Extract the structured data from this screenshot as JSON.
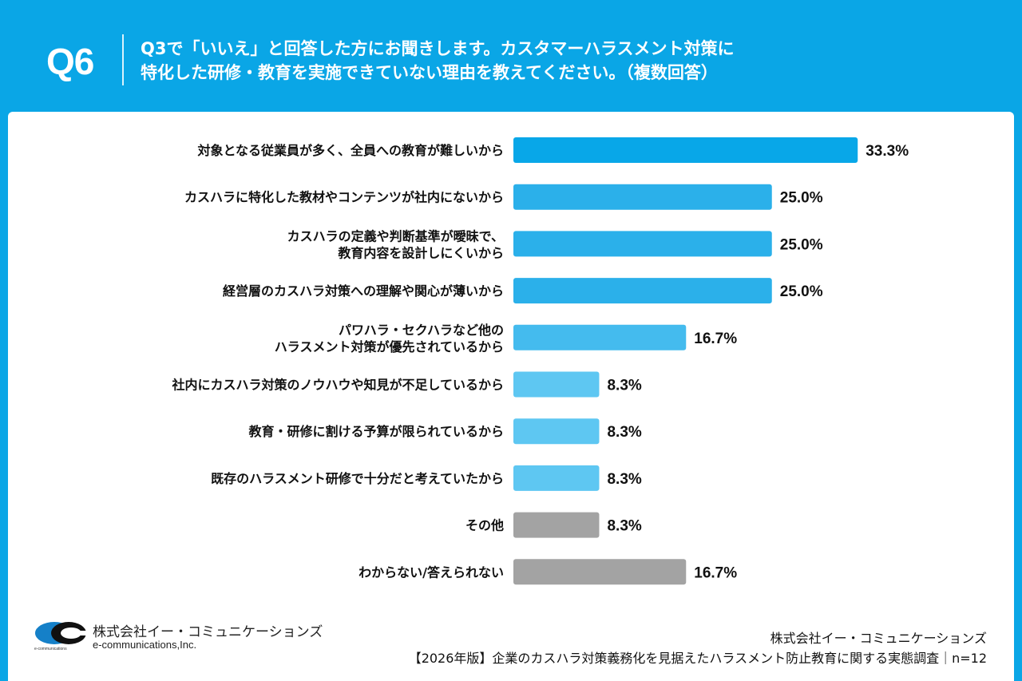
{
  "header": {
    "question_no": "Q6",
    "question_line1": "Q3で「いいえ」と回答した方にお聞きします。カスタマーハラスメント対策に",
    "question_line2": "特化した研修・教育を実施できていない理由を教えてください。（複数回答）"
  },
  "chart_data": {
    "type": "bar",
    "orientation": "horizontal",
    "categories": [
      [
        "対象となる従業員が多く、全員への教育が難しいから"
      ],
      [
        "カスハラに特化した教材やコンテンツが社内にないから"
      ],
      [
        "カスハラの定義や判断基準が曖昧で、",
        "教育内容を設計しにくいから"
      ],
      [
        "経営層のカスハラ対策への理解や関心が薄いから"
      ],
      [
        "パワハラ・セクハラなど他の",
        "ハラスメント対策が優先されているから"
      ],
      [
        "社内にカスハラ対策のノウハウや知見が不足しているから"
      ],
      [
        "教育・研修に割ける予算が限られているから"
      ],
      [
        "既存のハラスメント研修で十分だと考えていたから"
      ],
      [
        "その他"
      ],
      [
        "わからない/答えられない"
      ]
    ],
    "values": [
      33.3,
      25.0,
      25.0,
      25.0,
      16.7,
      8.3,
      8.3,
      8.3,
      8.3,
      16.7
    ],
    "value_labels": [
      "33.3%",
      "25.0%",
      "25.0%",
      "25.0%",
      "16.7%",
      "8.3%",
      "8.3%",
      "8.3%",
      "8.3%",
      "16.7%"
    ],
    "colors": [
      "#08a7e8",
      "#2bb0ea",
      "#2bb0ea",
      "#2bb0ea",
      "#44bbee",
      "#5ec7f2",
      "#5ec7f2",
      "#5ec7f2",
      "#a3a3a3",
      "#a3a3a3"
    ],
    "grid": false
  },
  "footer": {
    "logo_jp": "株式会社イー・コミュニケーションズ",
    "logo_en": "e-communications,Inc.",
    "logo_mark_text": "e-communications",
    "source_company": "株式会社イー・コミュニケーションズ",
    "source_survey": "【2026年版】企業のカスハラ対策義務化を見据えたハラスメント防止教育に関する実態調査｜n=12"
  }
}
